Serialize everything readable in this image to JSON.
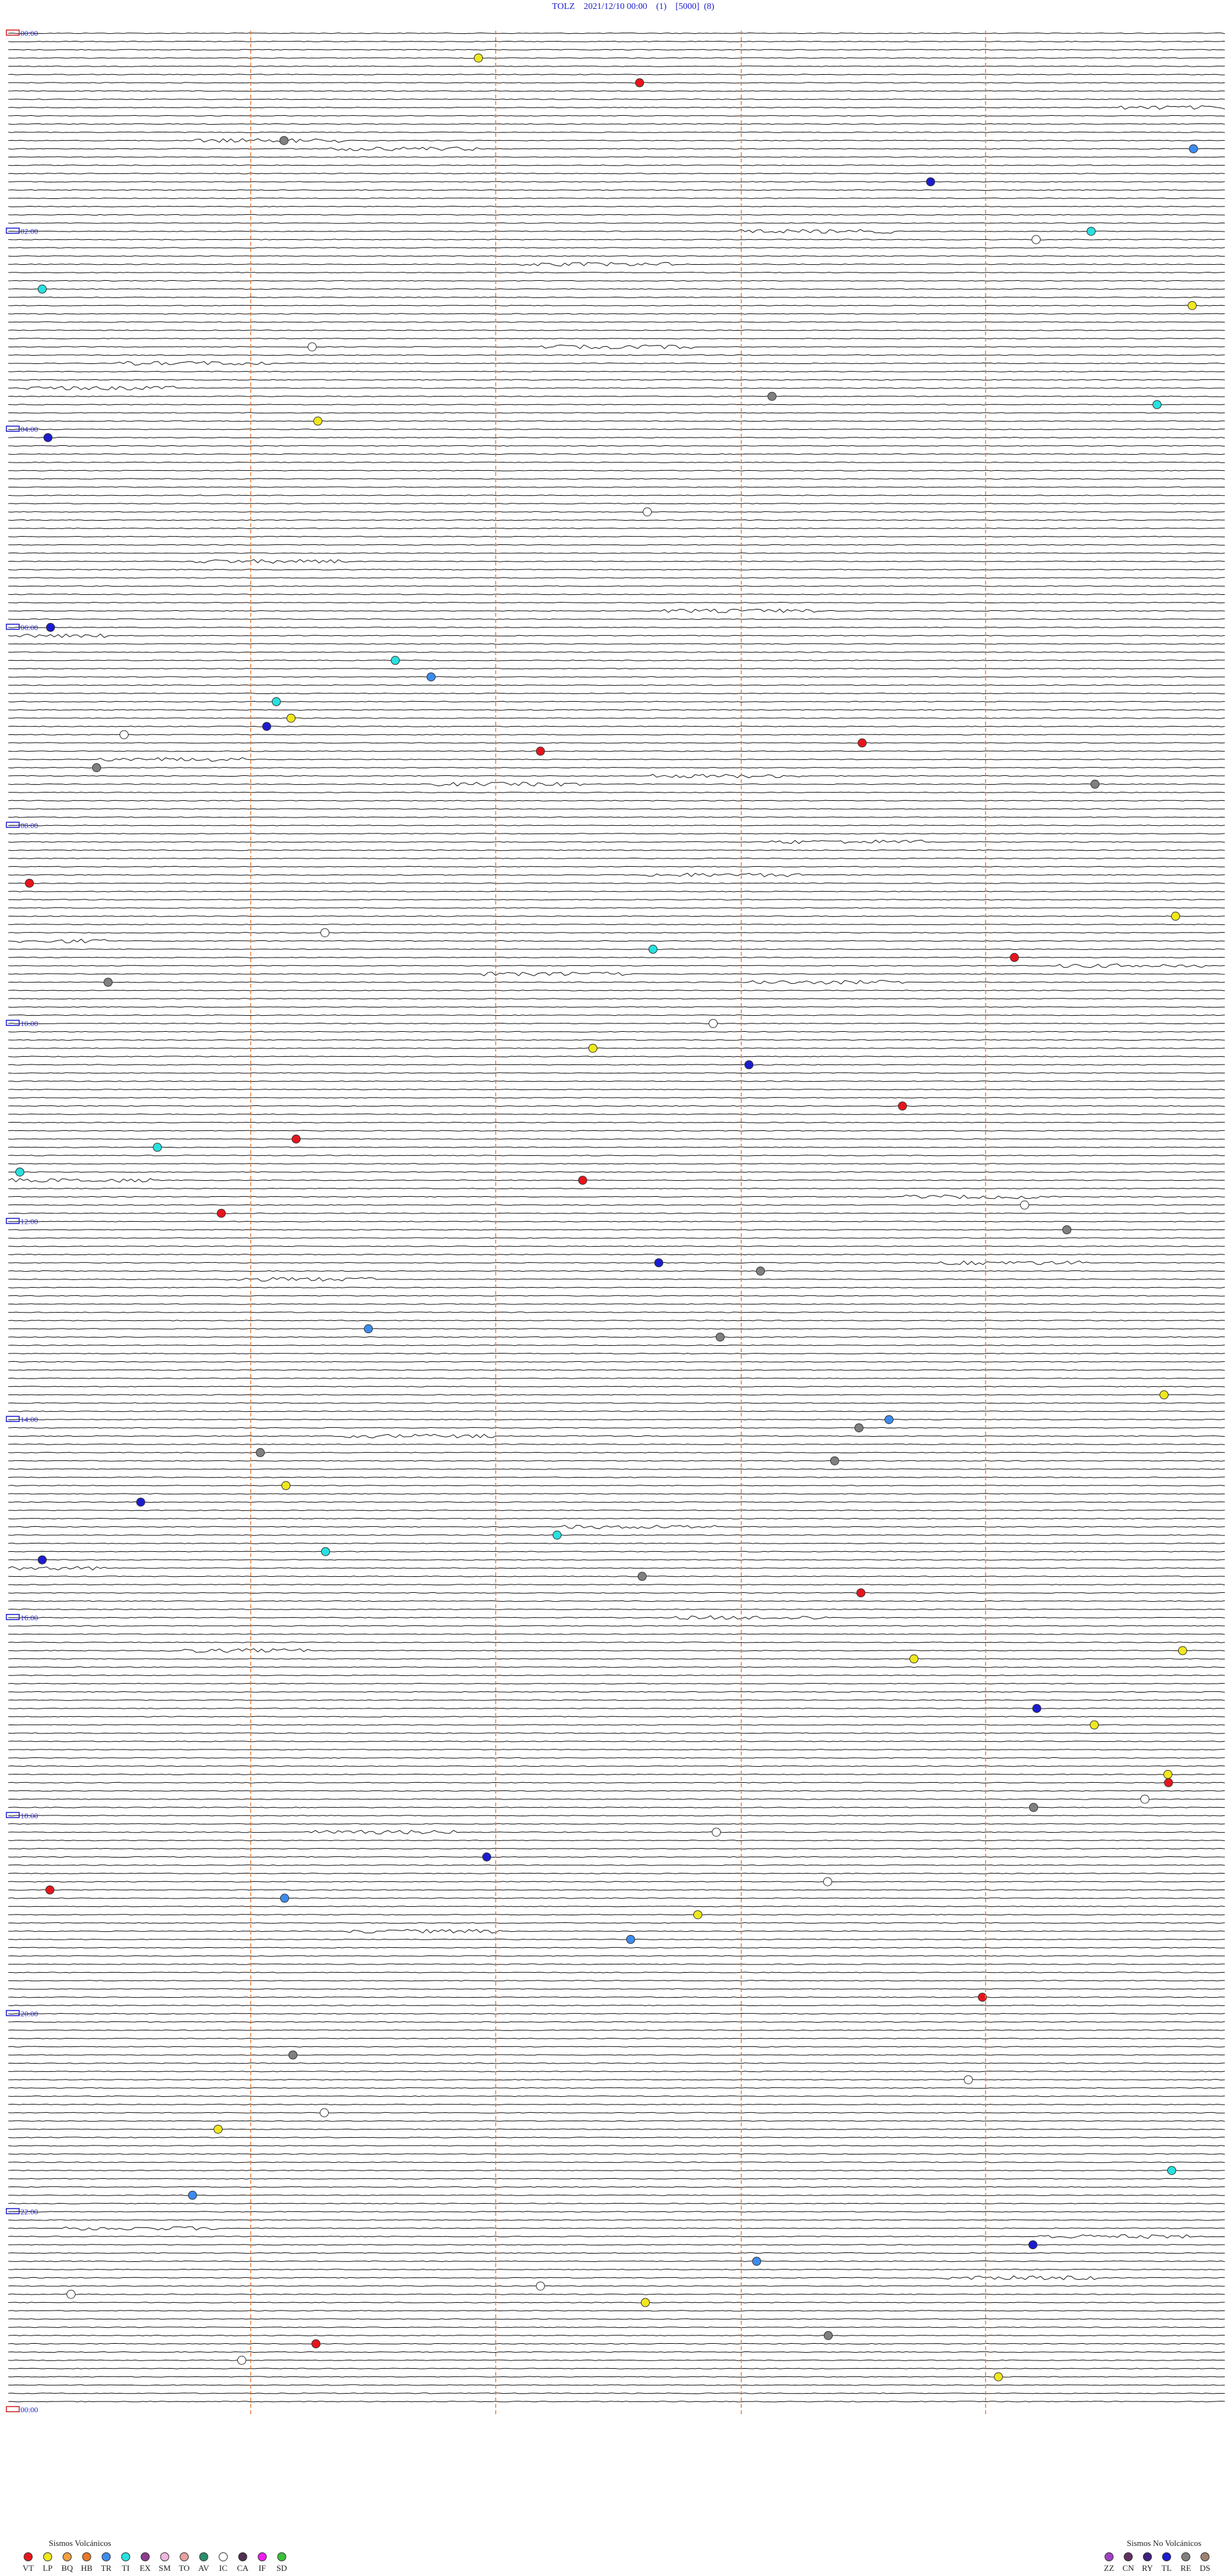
{
  "header": {
    "title": "TOLZ    2021/12/10 00:00    (1)    [5000]  (8)"
  },
  "time_labels": [
    "00:00",
    "02:00",
    "04:00",
    "06:00",
    "08:00",
    "10:00",
    "12:00",
    "14:00",
    "16:00",
    "18:00",
    "20:00",
    "22:00",
    "00:00"
  ],
  "legend": [
    {
      "title": "Sismos Volcánicos",
      "items": [
        {
          "label": "VT",
          "color": "#e8141c"
        },
        {
          "label": "LP",
          "color": "#f0e81c"
        },
        {
          "label": "BQ",
          "color": "#f0a040"
        },
        {
          "label": "HB",
          "color": "#e87828"
        },
        {
          "label": "TR",
          "color": "#3c8cf0"
        },
        {
          "label": "TI",
          "color": "#28e0e0"
        },
        {
          "label": "EX",
          "color": "#8c3c8c"
        },
        {
          "label": "SM",
          "color": "#f0b4e0"
        },
        {
          "label": "TO",
          "color": "#e8a0a0"
        },
        {
          "label": "AV",
          "color": "#2c8c6c"
        },
        {
          "label": "IC",
          "color": "#ffffff"
        },
        {
          "label": "CA",
          "color": "#503050"
        },
        {
          "label": "IF",
          "color": "#f01cf0"
        },
        {
          "label": "SD",
          "color": "#3cc03c"
        }
      ]
    },
    {
      "title": "Sismos No Volcánicos",
      "items": [
        {
          "label": "ZZ",
          "color": "#a040c0"
        },
        {
          "label": "CN",
          "color": "#603060"
        },
        {
          "label": "RY",
          "color": "#402080"
        },
        {
          "label": "TL",
          "color": "#1c1cd0"
        },
        {
          "label": "RE",
          "color": "#808080"
        },
        {
          "label": "DS",
          "color": "#a08070"
        }
      ]
    }
  ]
}
